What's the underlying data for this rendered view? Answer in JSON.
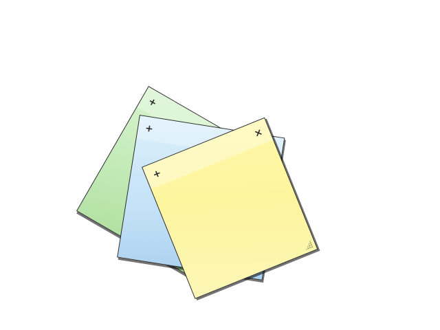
{
  "notes": [
    {
      "id": "green",
      "color": "#c3eab6",
      "add_label": "+",
      "text": ""
    },
    {
      "id": "blue",
      "color": "#c8e4f8",
      "add_label": "+",
      "text": ""
    },
    {
      "id": "yellow",
      "color": "#fdf5a2",
      "add_label": "+",
      "close_label": "×",
      "text": ""
    }
  ],
  "icons": {
    "add": "plus-icon",
    "close": "close-icon",
    "resize": "resize-grip-icon"
  }
}
